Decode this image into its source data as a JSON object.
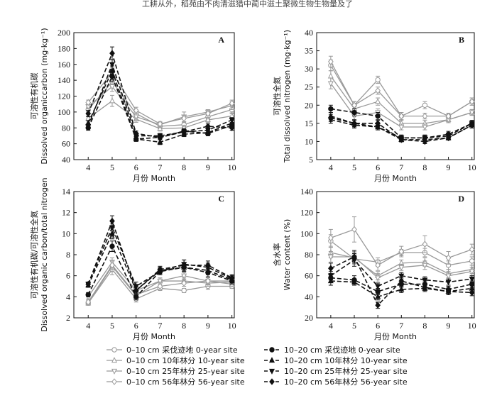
{
  "header_text": "工耕从外，稻苑由不肉清滋猎中蔺中滋土聚微生物生物量及了",
  "x_tick_labels": [
    "4",
    "5",
    "6",
    "7",
    "8",
    "9",
    "10"
  ],
  "x_axis_label": "月份 Month",
  "legend": [
    {
      "label": "0–10 cm 采伐迹地 0-year site",
      "color": "#999999",
      "dash": false,
      "marker": "circle"
    },
    {
      "label": "10–20 cm 采伐迹地 0-year site",
      "color": "#111111",
      "dash": true,
      "marker": "circle"
    },
    {
      "label": "0–10 cm 10年林分 10-year site",
      "color": "#999999",
      "dash": false,
      "marker": "triangle-up"
    },
    {
      "label": "10–20 cm 10年林分 10-year site",
      "color": "#111111",
      "dash": true,
      "marker": "triangle-up"
    },
    {
      "label": "0–10 cm 25年林分 25-year site",
      "color": "#999999",
      "dash": false,
      "marker": "triangle-down"
    },
    {
      "label": "10–20 cm 25年林分 25-year site",
      "color": "#111111",
      "dash": true,
      "marker": "triangle-down"
    },
    {
      "label": "0–10 cm 56年林分 56-year site",
      "color": "#999999",
      "dash": false,
      "marker": "diamond"
    },
    {
      "label": "10–20 cm 56年林分 56-year site",
      "color": "#111111",
      "dash": true,
      "marker": "diamond"
    }
  ],
  "chart_data": [
    {
      "id": "A",
      "type": "line",
      "panel_label": "A",
      "ylabel_cn": "可溶性有机碳",
      "ylabel_en": "Dissolved organiccarbon (mg·kg⁻¹)",
      "x": [
        4,
        5,
        6,
        7,
        8,
        9,
        10
      ],
      "ylim": [
        40,
        200
      ],
      "yticks": [
        40,
        60,
        80,
        100,
        120,
        140,
        160,
        180,
        200
      ],
      "series": [
        {
          "legend_index": 0,
          "values": [
            103,
            138,
            98,
            82,
            84,
            94,
            103
          ],
          "err": [
            3,
            6,
            4,
            3,
            3,
            3,
            4
          ]
        },
        {
          "legend_index": 2,
          "values": [
            92,
            114,
            91,
            79,
            80,
            90,
            95
          ],
          "err": [
            3,
            7,
            4,
            3,
            3,
            3,
            3
          ]
        },
        {
          "legend_index": 4,
          "values": [
            107,
            132,
            94,
            84,
            94,
            100,
            108
          ],
          "err": [
            3,
            6,
            4,
            3,
            6,
            3,
            5
          ]
        },
        {
          "legend_index": 6,
          "values": [
            112,
            150,
            102,
            85,
            92,
            98,
            111
          ],
          "err": [
            3,
            6,
            4,
            3,
            4,
            3,
            4
          ]
        },
        {
          "legend_index": 1,
          "values": [
            80,
            145,
            66,
            68,
            76,
            73,
            83
          ],
          "err": [
            3,
            7,
            3,
            3,
            3,
            3,
            3
          ]
        },
        {
          "legend_index": 3,
          "values": [
            86,
            152,
            66,
            62,
            72,
            74,
            86
          ],
          "err": [
            3,
            6,
            3,
            3,
            3,
            3,
            3
          ]
        },
        {
          "legend_index": 5,
          "values": [
            82,
            160,
            70,
            70,
            75,
            77,
            90
          ],
          "err": [
            3,
            6,
            3,
            3,
            3,
            3,
            3
          ]
        },
        {
          "legend_index": 7,
          "values": [
            98,
            174,
            73,
            68,
            75,
            82,
            80
          ],
          "err": [
            4,
            8,
            3,
            3,
            3,
            3,
            3
          ]
        }
      ]
    },
    {
      "id": "B",
      "type": "line",
      "panel_label": "B",
      "ylabel_cn": "可溶性全氮",
      "ylabel_en": "Total dissolved nitrogen (mg·kg⁻¹)",
      "x": [
        4,
        5,
        6,
        7,
        8,
        9,
        10
      ],
      "ylim": [
        5,
        40
      ],
      "yticks": [
        5,
        10,
        15,
        20,
        25,
        30,
        35,
        40
      ],
      "series": [
        {
          "legend_index": 0,
          "values": [
            31,
            20,
            27,
            17,
            20,
            17,
            21
          ],
          "err": [
            1.5,
            1,
            1,
            1,
            1,
            0.8,
            1
          ]
        },
        {
          "legend_index": 2,
          "values": [
            28,
            19,
            21,
            15,
            15,
            16,
            18
          ],
          "err": [
            1.5,
            1,
            1,
            0.8,
            0.8,
            0.8,
            0.8
          ]
        },
        {
          "legend_index": 4,
          "values": [
            26,
            17,
            18,
            14,
            14,
            16,
            18
          ],
          "err": [
            1.5,
            1,
            1,
            0.8,
            0.8,
            0.8,
            0.8
          ]
        },
        {
          "legend_index": 6,
          "values": [
            32,
            20,
            24,
            17,
            17,
            17,
            21
          ],
          "err": [
            1.5,
            1,
            1,
            1,
            0.8,
            0.8,
            1
          ]
        },
        {
          "legend_index": 1,
          "values": [
            19,
            18,
            17,
            11,
            11,
            12,
            15
          ],
          "err": [
            1,
            1,
            1,
            0.8,
            0.8,
            0.8,
            0.8
          ]
        },
        {
          "legend_index": 3,
          "values": [
            17,
            15,
            14,
            10.5,
            10.5,
            11,
            14.5
          ],
          "err": [
            1,
            1,
            0.8,
            0.6,
            0.6,
            0.6,
            0.8
          ]
        },
        {
          "legend_index": 5,
          "values": [
            16,
            14.5,
            14,
            11,
            11,
            11.5,
            15
          ],
          "err": [
            1,
            0.8,
            0.8,
            0.6,
            0.6,
            0.6,
            0.8
          ]
        },
        {
          "legend_index": 7,
          "values": [
            16.5,
            15,
            15,
            10.5,
            10,
            11,
            14.5
          ],
          "err": [
            1,
            0.8,
            0.8,
            0.6,
            0.6,
            0.6,
            0.8
          ]
        }
      ]
    },
    {
      "id": "C",
      "type": "line",
      "panel_label": "C",
      "ylabel_cn": "可溶性有机碳/可溶性全氮",
      "ylabel_en": "Dissolved organic carbon/total nitrogen",
      "x": [
        4,
        5,
        6,
        7,
        8,
        9,
        10
      ],
      "ylim": [
        2,
        14
      ],
      "yticks": [
        2,
        4,
        6,
        8,
        10,
        12,
        14
      ],
      "series": [
        {
          "legend_index": 0,
          "values": [
            3.4,
            6.6,
            3.8,
            4.8,
            4.6,
            5.0,
            5.0
          ],
          "err": [
            0.2,
            0.5,
            0.3,
            0.2,
            0.2,
            0.3,
            0.2
          ]
        },
        {
          "legend_index": 2,
          "values": [
            3.4,
            6.9,
            4.1,
            5.5,
            5.5,
            5.3,
            5.4
          ],
          "err": [
            0.2,
            0.5,
            0.3,
            0.2,
            0.3,
            0.3,
            0.2
          ]
        },
        {
          "legend_index": 4,
          "values": [
            4.0,
            7.3,
            4.6,
            5.5,
            6.0,
            5.5,
            5.5
          ],
          "err": [
            0.2,
            0.4,
            0.3,
            0.3,
            0.3,
            0.3,
            0.2
          ]
        },
        {
          "legend_index": 6,
          "values": [
            3.5,
            7.0,
            4.2,
            5.0,
            5.3,
            5.5,
            5.2
          ],
          "err": [
            0.2,
            0.4,
            0.3,
            0.3,
            0.3,
            0.3,
            0.2
          ]
        },
        {
          "legend_index": 1,
          "values": [
            4.2,
            8.8,
            4.0,
            6.4,
            6.8,
            6.3,
            5.5
          ],
          "err": [
            0.2,
            0.5,
            0.3,
            0.3,
            0.4,
            0.4,
            0.3
          ]
        },
        {
          "legend_index": 3,
          "values": [
            5.1,
            10.0,
            4.6,
            6.5,
            6.8,
            6.5,
            5.6
          ],
          "err": [
            0.2,
            0.5,
            0.3,
            0.3,
            0.4,
            0.4,
            0.3
          ]
        },
        {
          "legend_index": 5,
          "values": [
            5.2,
            10.6,
            5.0,
            6.4,
            7.1,
            6.8,
            5.7
          ],
          "err": [
            0.2,
            0.6,
            0.4,
            0.3,
            0.4,
            0.4,
            0.3
          ]
        },
        {
          "legend_index": 7,
          "values": [
            5.2,
            11.2,
            4.6,
            6.6,
            7.0,
            7.0,
            5.8
          ],
          "err": [
            0.2,
            0.5,
            0.4,
            0.3,
            0.5,
            0.4,
            0.3
          ]
        }
      ]
    },
    {
      "id": "D",
      "type": "line",
      "panel_label": "D",
      "ylabel_cn": "含水率",
      "ylabel_en": "Water content (%)",
      "x": [
        4,
        5,
        6,
        7,
        8,
        9,
        10
      ],
      "ylim": [
        20,
        140
      ],
      "yticks": [
        20,
        40,
        60,
        80,
        100,
        120,
        140
      ],
      "series": [
        {
          "legend_index": 0,
          "values": [
            93,
            76,
            73,
            82,
            82,
            70,
            74
          ],
          "err": [
            6,
            5,
            4,
            3,
            4,
            4,
            4
          ]
        },
        {
          "legend_index": 2,
          "values": [
            82,
            77,
            60,
            72,
            73,
            62,
            66
          ],
          "err": [
            5,
            5,
            4,
            3,
            4,
            4,
            4
          ]
        },
        {
          "legend_index": 4,
          "values": [
            78,
            78,
            58,
            68,
            70,
            60,
            64
          ],
          "err": [
            5,
            5,
            4,
            3,
            4,
            4,
            4
          ]
        },
        {
          "legend_index": 6,
          "values": [
            96,
            104,
            70,
            83,
            90,
            77,
            85
          ],
          "err": [
            8,
            12,
            5,
            5,
            8,
            6,
            5
          ]
        },
        {
          "legend_index": 1,
          "values": [
            58,
            56,
            45,
            52,
            52,
            47,
            52
          ],
          "err": [
            4,
            4,
            3,
            3,
            3,
            3,
            3
          ]
        },
        {
          "legend_index": 3,
          "values": [
            55,
            54,
            40,
            47,
            48,
            45,
            48
          ],
          "err": [
            4,
            3,
            3,
            3,
            3,
            3,
            3
          ]
        },
        {
          "legend_index": 5,
          "values": [
            60,
            75,
            50,
            60,
            56,
            54,
            57
          ],
          "err": [
            4,
            6,
            3,
            3,
            3,
            3,
            3
          ]
        },
        {
          "legend_index": 7,
          "values": [
            67,
            78,
            32,
            55,
            49,
            45,
            44
          ],
          "err": [
            5,
            6,
            3,
            3,
            3,
            3,
            3
          ]
        }
      ]
    }
  ]
}
